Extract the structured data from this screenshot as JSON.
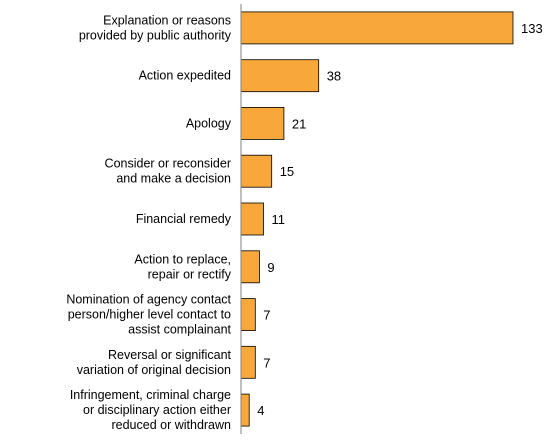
{
  "chart_data": {
    "type": "bar",
    "orientation": "horizontal",
    "title": "",
    "xlabel": "",
    "ylabel": "",
    "categories": [
      [
        "Explanation or reasons",
        "provided by public authority"
      ],
      [
        "Action expedited"
      ],
      [
        "Apology"
      ],
      [
        "Consider or reconsider",
        "and make a decision"
      ],
      [
        "Financial remedy"
      ],
      [
        "Action to replace,",
        "repair or rectify"
      ],
      [
        "Nomination of agency contact",
        "person/higher level contact to",
        "assist complainant"
      ],
      [
        "Reversal or significant",
        "variation of original decision"
      ],
      [
        "Infringement, criminal charge",
        "or disciplinary action either",
        "reduced or withdrawn"
      ]
    ],
    "values": [
      133,
      38,
      21,
      15,
      11,
      9,
      7,
      7,
      4
    ],
    "xlim": [
      0,
      133
    ],
    "grid": false,
    "legend": "none",
    "bar_color": "#F8A83A",
    "bar_stroke": "#000000",
    "axis_color": "#808080"
  }
}
